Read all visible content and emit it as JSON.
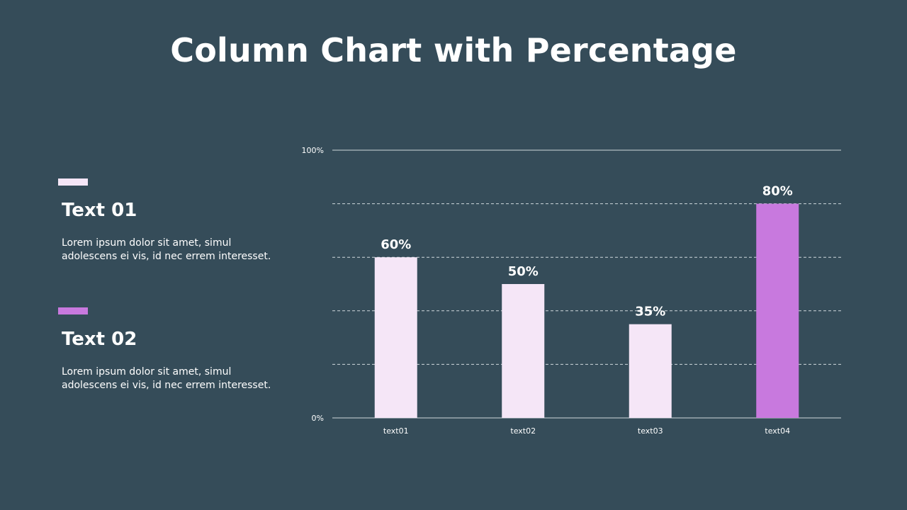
{
  "title": "Column Chart with Percentage",
  "colors": {
    "background": "#354c59",
    "series1": "#f5e6f7",
    "series2": "#c879de",
    "grid": "#cfd8dc",
    "text": "#ffffff"
  },
  "legend": [
    {
      "heading": "Text 01",
      "body": "Lorem ipsum dolor sit amet,  simul adolescens ei vis, id nec errem  interesset.",
      "color": "#f5e6f7"
    },
    {
      "heading": "Text 02",
      "body": "Lorem ipsum dolor sit amet,  simul adolescens ei vis, id nec errem  interesset.",
      "color": "#c879de"
    }
  ],
  "chart_data": {
    "type": "bar",
    "categories": [
      "text01",
      "text02",
      "text03",
      "text04"
    ],
    "values": [
      60,
      50,
      35,
      80
    ],
    "data_labels": [
      "60%",
      "50%",
      "35%",
      "80%"
    ],
    "bar_colors": [
      "#f5e6f7",
      "#f5e6f7",
      "#f5e6f7",
      "#c879de"
    ],
    "ylim": [
      0,
      100
    ],
    "y_ticks": [
      0,
      20,
      40,
      60,
      80,
      100
    ],
    "y_tick_labels": [
      "0%",
      "",
      "",
      "",
      "",
      "100%"
    ],
    "grid": true
  }
}
